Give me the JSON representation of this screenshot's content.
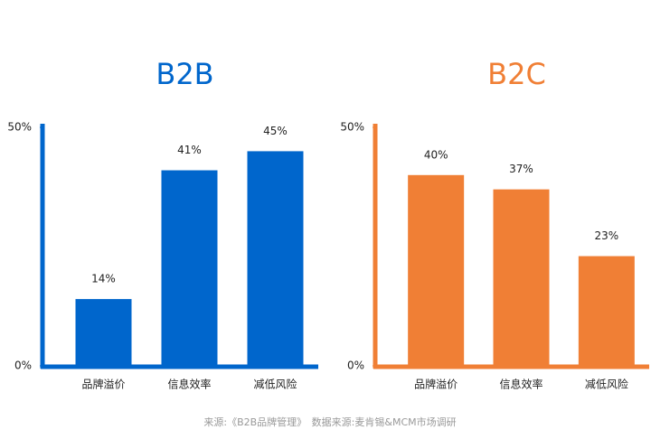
{
  "chart_data": [
    {
      "type": "bar",
      "title": "B2B",
      "categories": [
        "品牌溢价",
        "信息效率",
        "减低风险"
      ],
      "values": [
        14,
        41,
        45
      ],
      "value_labels": [
        "14%",
        "41%",
        "45%"
      ],
      "color": "#0066cc",
      "ylim": [
        0,
        50
      ],
      "yticks": [
        {
          "value": 0,
          "label": "0%"
        },
        {
          "value": 50,
          "label": "50%"
        }
      ]
    },
    {
      "type": "bar",
      "title": "B2C",
      "categories": [
        "品牌溢价",
        "信息效率",
        "减低风险"
      ],
      "values": [
        40,
        37,
        23
      ],
      "value_labels": [
        "40%",
        "37%",
        "23%"
      ],
      "color": "#f07f35",
      "ylim": [
        0,
        50
      ],
      "yticks": [
        {
          "value": 0,
          "label": "0%"
        },
        {
          "value": 50,
          "label": "50%"
        }
      ]
    }
  ],
  "source": "来源:《B2B品牌管理》　数据来源:麦肯锡&MCM市场调研"
}
